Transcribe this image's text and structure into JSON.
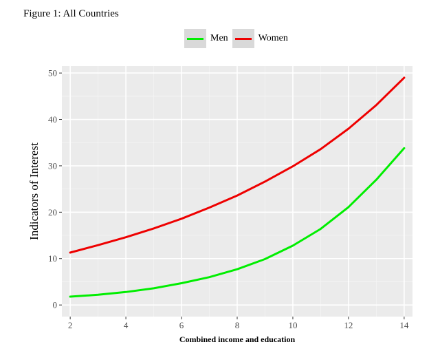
{
  "figure_title": "Figure 1: All Countries",
  "chart_data": {
    "type": "line",
    "xlabel": "Combined income and education",
    "ylabel": "Indicators of Interest",
    "xlim": [
      1.7,
      14.3
    ],
    "ylim": [
      -2.5,
      51.5
    ],
    "x_ticks": [
      2,
      4,
      6,
      8,
      10,
      12,
      14
    ],
    "y_ticks": [
      0,
      10,
      20,
      30,
      40,
      50
    ],
    "grid": true,
    "legend_position": "top",
    "series": [
      {
        "name": "Men",
        "color": "#00ee00",
        "x": [
          2,
          3,
          4,
          5,
          6,
          7,
          8,
          9,
          10,
          11,
          12,
          13,
          14
        ],
        "y": [
          1.8,
          2.2,
          2.8,
          3.6,
          4.7,
          6.0,
          7.7,
          9.9,
          12.8,
          16.4,
          21.1,
          27.0,
          33.8
        ]
      },
      {
        "name": "Women",
        "color": "#ee0000",
        "x": [
          2,
          3,
          4,
          5,
          6,
          7,
          8,
          9,
          10,
          11,
          12,
          13,
          14
        ],
        "y": [
          11.3,
          12.9,
          14.6,
          16.5,
          18.6,
          21.0,
          23.6,
          26.6,
          29.9,
          33.6,
          38.0,
          43.1,
          49.0
        ]
      }
    ]
  }
}
